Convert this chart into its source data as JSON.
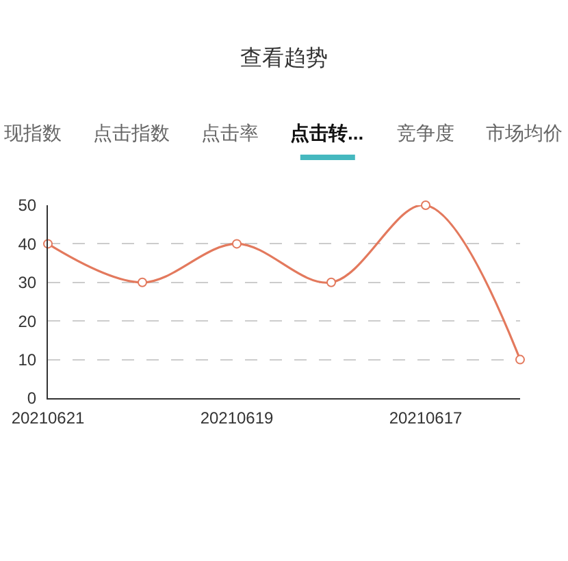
{
  "chart_data": {
    "type": "line",
    "title": "查看趋势",
    "annotations": [
      "现指数",
      "点击指数",
      "点击率",
      "点击转...",
      "竞争度",
      "市场均价"
    ],
    "categories": [
      "20210621",
      null,
      "20210619",
      null,
      "20210617",
      null
    ],
    "series": [
      {
        "color": "#e3795d",
        "values": [
          40,
          30,
          40,
          30,
          50,
          10
        ]
      }
    ],
    "ylim": [
      0,
      50
    ],
    "yticks": [
      0,
      10,
      20,
      30,
      40,
      50
    ],
    "grid": "y",
    "marker": "circle",
    "line_style": "solid"
  }
}
